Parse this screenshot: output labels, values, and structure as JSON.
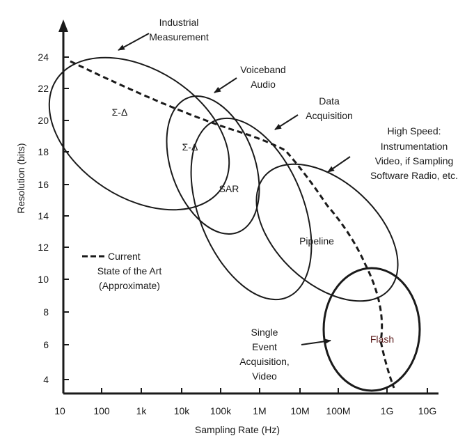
{
  "axes": {
    "x_title": "Sampling Rate (Hz)",
    "y_title": "Resolution (bits)",
    "x_ticks": [
      "10",
      "100",
      "1k",
      "10k",
      "100k",
      "1M",
      "10M",
      "100M",
      "1G",
      "10G"
    ],
    "y_ticks": [
      "4",
      "6",
      "8",
      "10",
      "12",
      "14",
      "16",
      "18",
      "20",
      "22",
      "24"
    ],
    "x_scale": "log",
    "y_range": [
      4,
      24
    ]
  },
  "regions": [
    {
      "name": "Σ-Δ",
      "application": "Industrial Measurement"
    },
    {
      "name": "Σ-Δ",
      "application": "Voiceband Audio"
    },
    {
      "name": "SAR",
      "application": "Data Acquisition"
    },
    {
      "name": "Pipeline",
      "application": "High Speed: Instrumentation Video, if Sampling Software Radio, etc."
    },
    {
      "name": "Flash",
      "application": "Single Event Acquisition, Video"
    }
  ],
  "callouts": {
    "industrial": [
      "Industrial",
      "Measurement"
    ],
    "voiceband": [
      "Voiceband",
      "Audio"
    ],
    "data_acq": [
      "Data",
      "Acquisition"
    ],
    "high_speed": [
      "High Speed:",
      "Instrumentation",
      "Video, if Sampling",
      "Software Radio, etc."
    ],
    "single_event": [
      "Single",
      "Event",
      "Acquisition,",
      "Video"
    ]
  },
  "legend": {
    "line1": "Current",
    "line2": "State of the Art",
    "line3": "(Approximate)"
  },
  "colors": {
    "ink": "#1a1a1a",
    "flash_text": "#5a1a1a"
  }
}
